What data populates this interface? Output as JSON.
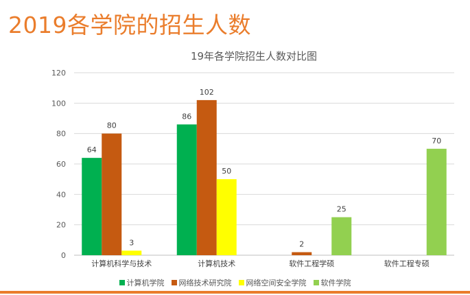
{
  "slide": {
    "title": "2019各学院的招生人数"
  },
  "chart_data": {
    "type": "bar",
    "title": "19年各学院招生人数对比图",
    "categories": [
      "计算机科学与技术",
      "计算机技术",
      "软件工程学硕",
      "软件工程专硕"
    ],
    "series": [
      {
        "name": "计算机学院",
        "color": "#00b050",
        "values": [
          64,
          86,
          null,
          null
        ]
      },
      {
        "name": "网络技术研究院",
        "color": "#c55a11",
        "values": [
          80,
          102,
          2,
          null
        ]
      },
      {
        "name": "网络空间安全学院",
        "color": "#ffff00",
        "values": [
          3,
          50,
          null,
          null
        ]
      },
      {
        "name": "软件学院",
        "color": "#92d050",
        "values": [
          null,
          null,
          25,
          70
        ]
      }
    ],
    "ylim": [
      0,
      120
    ],
    "yticks": [
      0,
      20,
      40,
      60,
      80,
      100,
      120
    ],
    "grid": true,
    "legend_position": "bottom",
    "xlabel": "",
    "ylabel": ""
  }
}
